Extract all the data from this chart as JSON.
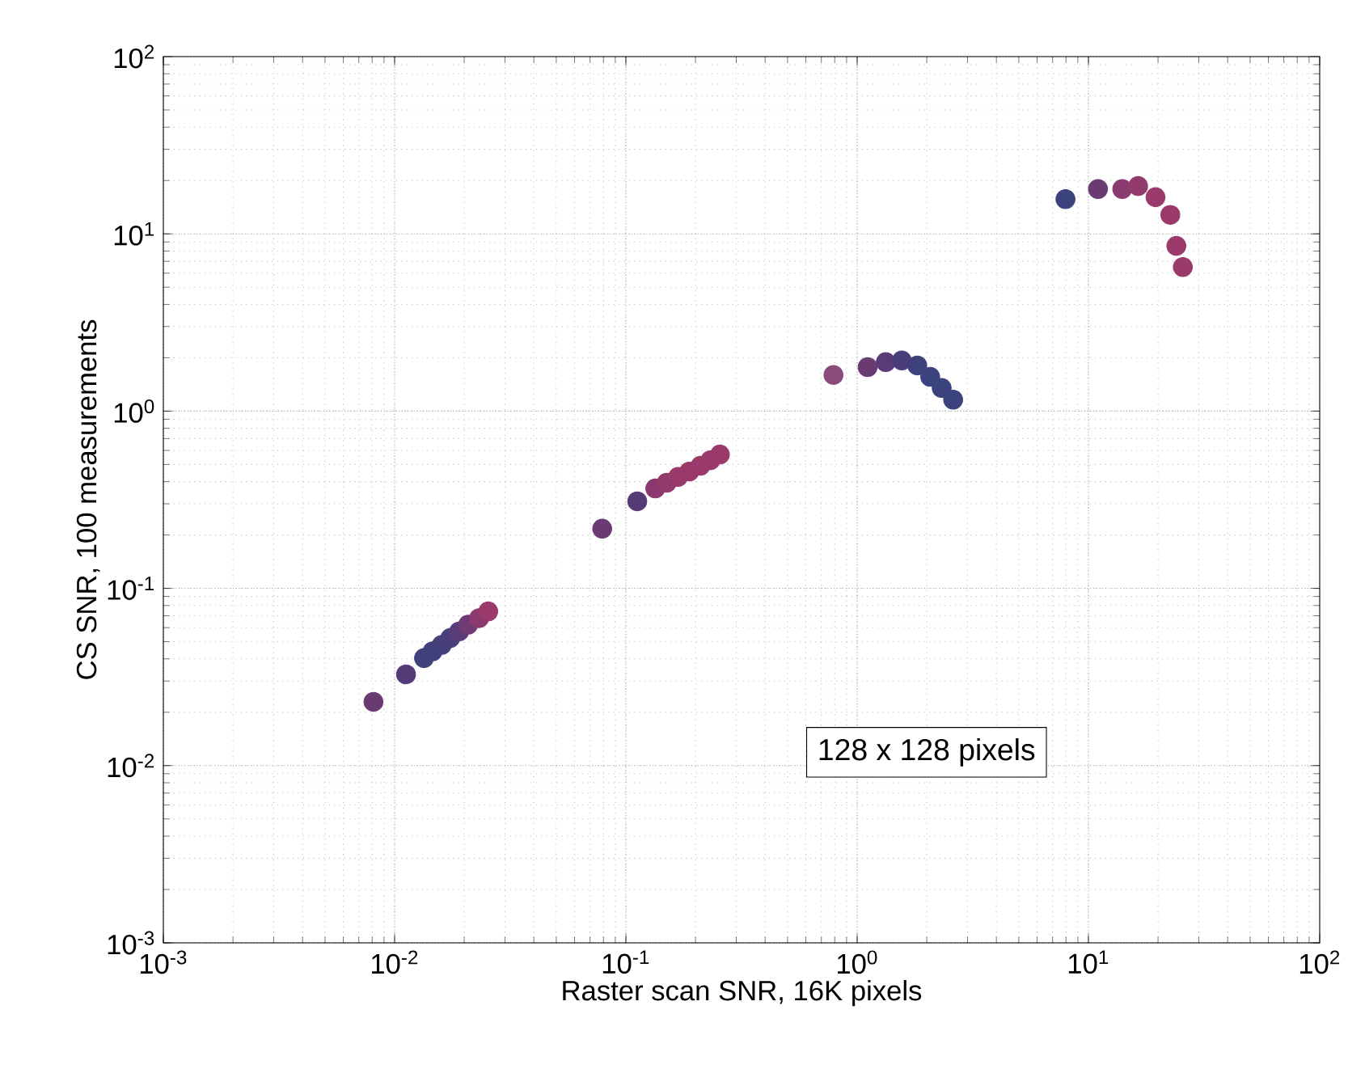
{
  "chart_data": {
    "type": "scatter",
    "xlabel": "Raster scan SNR, 16K pixels",
    "ylabel": "CS SNR, 100 measurements",
    "log": "xy",
    "grid": true,
    "marker": "circle",
    "xlim": [
      0.001,
      100
    ],
    "ylim": [
      0.001,
      100
    ],
    "xticks": [
      {
        "value": 0.001,
        "label": "10$^{-3}$"
      },
      {
        "value": 0.01,
        "label": "10$^{-2}$"
      },
      {
        "value": 0.1,
        "label": "10$^{-1}$"
      },
      {
        "value": 1,
        "label": "10$^{0}$"
      },
      {
        "value": 10,
        "label": "10$^{1}$"
      },
      {
        "value": 100,
        "label": "10$^{2}$"
      }
    ],
    "yticks": [
      {
        "value": 0.001,
        "label": "10$^{-3}$"
      },
      {
        "value": 0.01,
        "label": "10$^{-2}$"
      },
      {
        "value": 0.1,
        "label": "10$^{-1}$"
      },
      {
        "value": 1,
        "label": "10$^{0}$"
      },
      {
        "value": 10,
        "label": "10$^{1}$"
      },
      {
        "value": 100,
        "label": "10$^{2}$"
      }
    ],
    "annotations": [
      "128 x 128 pixels"
    ],
    "series": [
      {
        "x": [
          0.0081,
          0.0112,
          0.0134,
          0.0146,
          0.016,
          0.0174,
          0.019,
          0.0208,
          0.0232,
          0.0254,
          0.079,
          0.112,
          0.134,
          0.15,
          0.168,
          0.188,
          0.21,
          0.232,
          0.255,
          0.79,
          1.11,
          1.33,
          1.56,
          1.82,
          2.07,
          2.32,
          2.6,
          7.96,
          11.0,
          14.0,
          16.4,
          19.5,
          22.6,
          24.0,
          25.6
        ],
        "values": [
          0.0229,
          0.0327,
          0.0404,
          0.0441,
          0.048,
          0.0524,
          0.0571,
          0.0624,
          0.0679,
          0.0741,
          0.217,
          0.31,
          0.366,
          0.394,
          0.425,
          0.456,
          0.491,
          0.528,
          0.569,
          1.6,
          1.77,
          1.89,
          1.93,
          1.81,
          1.56,
          1.35,
          1.16,
          15.7,
          17.9,
          17.9,
          18.6,
          16.1,
          12.8,
          8.55,
          6.5
        ],
        "colors": [
          "#6a3a72",
          "#553a78",
          "#3f417c",
          "#3f417c",
          "#44407c",
          "#4a3e7a",
          "#5a3c78",
          "#703a74",
          "#8a3a6e",
          "#9a3a6a",
          "#6a3a72",
          "#553a78",
          "#8a3a6e",
          "#923a6c",
          "#9a3a6a",
          "#9a3a6a",
          "#9a3a6a",
          "#9a3a6a",
          "#9a3a6a",
          "#8a4a7a",
          "#6a3a72",
          "#5a3a78",
          "#4a3e7a",
          "#3f417c",
          "#3a437e",
          "#3a437e",
          "#3a437e",
          "#3a437e",
          "#6a3a72",
          "#8a3a6e",
          "#923a6c",
          "#9a3a6a",
          "#9a3a6a",
          "#9a3a6a",
          "#9a3a6a"
        ]
      }
    ]
  }
}
